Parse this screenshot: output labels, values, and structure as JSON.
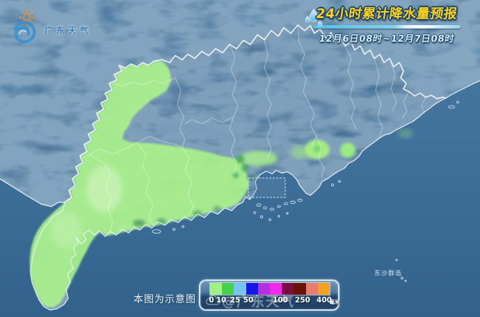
{
  "logo": {
    "name": "广东天气"
  },
  "header": {
    "title": "24小时累计降水量预报",
    "period": "12月6日08时~12月7日08时"
  },
  "map": {
    "note": "本图为示意图",
    "island_label": "东沙群岛"
  },
  "legend": {
    "values": [
      "0",
      "10",
      "25",
      "50",
      "100",
      "250",
      "400"
    ],
    "unit": "毫米",
    "colors": [
      "#9ff183",
      "#44d14b",
      "#76c4f1",
      "#1617e3",
      "#b62fe3",
      "#ee2aee",
      "#7a0c42",
      "#6b1208",
      "#e47f70",
      "#f5a01e"
    ]
  },
  "watermark": {
    "text": "@广东天气"
  },
  "colors": {
    "title_yellow": "#ffd21c",
    "rain_light_green": "#aaf08c",
    "rain_dark_green": "#3fae4e",
    "sea_blue": "#3e6e96",
    "land_blue": "#3e6b94",
    "outer_land_blue": "#4e7ca4"
  }
}
